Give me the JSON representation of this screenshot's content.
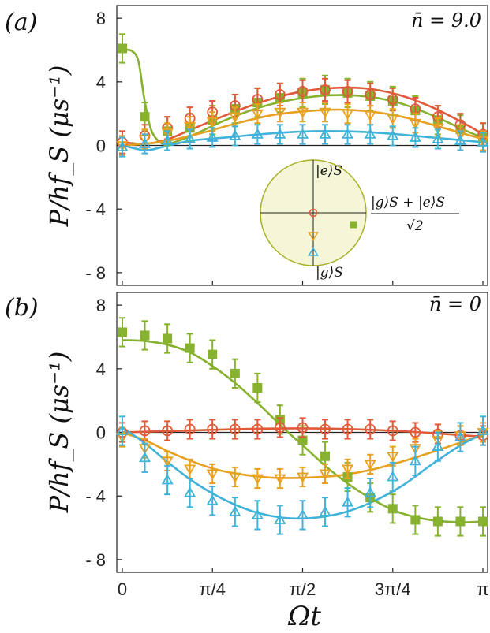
{
  "chart_data": [
    {
      "type": "scatter",
      "panel_label": "(a)",
      "annotation": "n̄ = 9.0",
      "ylabel": "P/hf_S (μs⁻¹)",
      "xlim": [
        0,
        3.1416
      ],
      "ylim": [
        -8.8,
        8.8
      ],
      "yticks": [
        8,
        4,
        0,
        -4,
        -8
      ],
      "ytick_labels": [
        "8",
        "4",
        "0",
        "- 4",
        "- 8"
      ],
      "x": [
        0,
        0.196,
        0.393,
        0.589,
        0.785,
        0.982,
        1.178,
        1.374,
        1.571,
        1.767,
        1.963,
        2.16,
        2.356,
        2.553,
        2.749,
        2.945,
        3.142
      ],
      "series": [
        {
          "name": "|g⟩S+|e⟩S over √2",
          "color": "#86b22f",
          "marker": "square",
          "values": [
            6.1,
            1.8,
            0.9,
            1.1,
            1.6,
            2.3,
            2.7,
            3.0,
            3.3,
            3.5,
            3.3,
            3.1,
            2.8,
            2.2,
            1.6,
            1.0,
            0.5
          ],
          "err": 0.9,
          "fit": [
            [
              0,
              6.0
            ],
            [
              0.08,
              5.95
            ],
            [
              0.14,
              5.3
            ],
            [
              0.19,
              3.0
            ],
            [
              0.25,
              1.0
            ],
            [
              0.33,
              0.2
            ],
            [
              0.4,
              0.1
            ],
            [
              0.6,
              0.6
            ],
            [
              0.9,
              1.6
            ],
            [
              1.2,
              2.4
            ],
            [
              1.5,
              2.9
            ],
            [
              1.8,
              3.15
            ],
            [
              2.1,
              3.1
            ],
            [
              2.4,
              2.7
            ],
            [
              2.7,
              1.9
            ],
            [
              3.0,
              0.9
            ],
            [
              3.14,
              0.5
            ]
          ]
        },
        {
          "name": "red circle",
          "color": "#e05a3a",
          "marker": "circle",
          "values": [
            0.2,
            0.6,
            1.1,
            1.7,
            2.1,
            2.5,
            2.9,
            3.2,
            3.4,
            3.5,
            3.4,
            3.2,
            2.9,
            2.3,
            1.8,
            1.3,
            0.7
          ],
          "err": 0.7,
          "fit": [
            [
              0,
              0.2
            ],
            [
              0.2,
              0.1
            ],
            [
              0.4,
              0.4
            ],
            [
              0.6,
              1.0
            ],
            [
              0.9,
              1.9
            ],
            [
              1.2,
              2.7
            ],
            [
              1.5,
              3.3
            ],
            [
              1.8,
              3.6
            ],
            [
              2.1,
              3.6
            ],
            [
              2.4,
              3.2
            ],
            [
              2.7,
              2.4
            ],
            [
              3.0,
              1.3
            ],
            [
              3.14,
              0.7
            ]
          ]
        },
        {
          "name": "orange triangle down",
          "color": "#e8a020",
          "marker": "triangle-down",
          "values": [
            0.0,
            0.4,
            0.8,
            1.2,
            1.5,
            1.8,
            2.0,
            2.1,
            2.1,
            2.1,
            2.0,
            1.9,
            1.7,
            1.4,
            1.1,
            0.7,
            0.3
          ],
          "err": 0.6,
          "fit": [
            [
              0,
              0.0
            ],
            [
              0.2,
              0.1
            ],
            [
              0.4,
              0.3
            ],
            [
              0.7,
              0.8
            ],
            [
              1.0,
              1.4
            ],
            [
              1.3,
              1.9
            ],
            [
              1.6,
              2.15
            ],
            [
              1.9,
              2.25
            ],
            [
              2.2,
              2.1
            ],
            [
              2.5,
              1.7
            ],
            [
              2.8,
              1.1
            ],
            [
              3.14,
              0.4
            ]
          ]
        },
        {
          "name": "blue triangle up",
          "color": "#41b3d9",
          "marker": "triangle-up",
          "values": [
            -0.1,
            0.1,
            0.3,
            0.4,
            0.5,
            0.6,
            0.7,
            0.7,
            0.7,
            0.7,
            0.7,
            0.7,
            0.6,
            0.5,
            0.4,
            0.3,
            0.2
          ],
          "err": 0.6,
          "fit": [
            [
              0,
              0.0
            ],
            [
              0.2,
              -0.3
            ],
            [
              0.35,
              -0.1
            ],
            [
              0.6,
              0.3
            ],
            [
              0.9,
              0.5
            ],
            [
              1.2,
              0.7
            ],
            [
              1.5,
              0.85
            ],
            [
              1.8,
              0.9
            ],
            [
              2.1,
              0.85
            ],
            [
              2.4,
              0.7
            ],
            [
              2.7,
              0.5
            ],
            [
              3.0,
              0.3
            ],
            [
              3.14,
              0.2
            ]
          ]
        }
      ],
      "inset": {
        "label_top": "|e⟩S",
        "label_bottom": "|g⟩S",
        "label_right_num": "|g⟩S + |e⟩S",
        "label_right_den": "√2"
      }
    },
    {
      "type": "scatter",
      "panel_label": "(b)",
      "annotation": "n̄ = 0",
      "ylabel": "P/hf_S (μs⁻¹)",
      "xlabel": "Ωt",
      "xlim": [
        0,
        3.1416
      ],
      "ylim": [
        -8.8,
        8.8
      ],
      "yticks": [
        8,
        4,
        0,
        -4,
        -8
      ],
      "ytick_labels": [
        "8",
        "4",
        "0",
        "- 4",
        "- 8"
      ],
      "xticks": [
        0,
        0.7854,
        1.5708,
        2.3562,
        3.1416
      ],
      "xtick_labels": [
        "0",
        "π/4",
        "π/2",
        "3π/4",
        "π"
      ],
      "x": [
        0,
        0.196,
        0.393,
        0.589,
        0.785,
        0.982,
        1.178,
        1.374,
        1.571,
        1.767,
        1.963,
        2.16,
        2.356,
        2.553,
        2.749,
        2.945,
        3.142
      ],
      "series": [
        {
          "name": "green square",
          "color": "#86b22f",
          "marker": "square",
          "values": [
            6.3,
            6.1,
            5.9,
            5.3,
            4.9,
            3.7,
            2.8,
            0.8,
            -0.5,
            -1.5,
            -2.8,
            -4.1,
            -4.8,
            -5.5,
            -5.6,
            -5.6,
            -5.6
          ],
          "err": 0.9,
          "fit": [
            [
              0,
              5.8
            ],
            [
              0.2,
              5.75
            ],
            [
              0.4,
              5.5
            ],
            [
              0.6,
              5.0
            ],
            [
              0.8,
              4.1
            ],
            [
              1.0,
              3.0
            ],
            [
              1.2,
              1.7
            ],
            [
              1.4,
              0.3
            ],
            [
              1.6,
              -1.0
            ],
            [
              1.8,
              -2.3
            ],
            [
              2.0,
              -3.4
            ],
            [
              2.2,
              -4.3
            ],
            [
              2.4,
              -5.0
            ],
            [
              2.6,
              -5.4
            ],
            [
              2.8,
              -5.6
            ],
            [
              3.0,
              -5.65
            ],
            [
              3.14,
              -5.6
            ]
          ]
        },
        {
          "name": "red circle",
          "color": "#e05a3a",
          "marker": "circle",
          "values": [
            0.0,
            0.1,
            0.1,
            0.2,
            0.2,
            0.2,
            0.2,
            0.3,
            0.3,
            0.2,
            0.2,
            0.2,
            0.1,
            0.0,
            -0.1,
            -0.2,
            -0.2
          ],
          "err": 0.6,
          "fit": [
            [
              0,
              0.0
            ],
            [
              0.5,
              0.1
            ],
            [
              1.0,
              0.2
            ],
            [
              1.5,
              0.25
            ],
            [
              2.0,
              0.2
            ],
            [
              2.5,
              0.05
            ],
            [
              3.0,
              -0.2
            ],
            [
              3.14,
              -0.25
            ]
          ]
        },
        {
          "name": "orange triangle down",
          "color": "#e8a020",
          "marker": "triangle-down",
          "values": [
            -0.3,
            -1.0,
            -1.8,
            -2.3,
            -2.6,
            -2.8,
            -2.9,
            -2.9,
            -2.8,
            -2.6,
            -2.3,
            -2.0,
            -1.5,
            -1.0,
            -0.5,
            -0.2,
            0.0
          ],
          "err": 0.6,
          "fit": [
            [
              0,
              0.0
            ],
            [
              0.2,
              -0.5
            ],
            [
              0.4,
              -1.2
            ],
            [
              0.6,
              -1.8
            ],
            [
              0.8,
              -2.3
            ],
            [
              1.0,
              -2.6
            ],
            [
              1.3,
              -2.85
            ],
            [
              1.6,
              -2.85
            ],
            [
              1.9,
              -2.7
            ],
            [
              2.2,
              -2.3
            ],
            [
              2.5,
              -1.7
            ],
            [
              2.8,
              -1.0
            ],
            [
              3.0,
              -0.5
            ],
            [
              3.14,
              -0.2
            ]
          ]
        },
        {
          "name": "blue triangle up",
          "color": "#41b3d9",
          "marker": "triangle-up",
          "values": [
            0.1,
            -1.6,
            -3.0,
            -3.8,
            -4.3,
            -5.0,
            -5.2,
            -5.5,
            -5.2,
            -5.0,
            -4.4,
            -3.8,
            -2.8,
            -1.8,
            -0.9,
            -0.3,
            0.1
          ],
          "err": 0.9,
          "fit": [
            [
              0,
              0.3
            ],
            [
              0.2,
              -0.7
            ],
            [
              0.4,
              -1.9
            ],
            [
              0.6,
              -3.0
            ],
            [
              0.8,
              -3.9
            ],
            [
              1.0,
              -4.6
            ],
            [
              1.2,
              -5.1
            ],
            [
              1.45,
              -5.4
            ],
            [
              1.7,
              -5.35
            ],
            [
              1.95,
              -5.0
            ],
            [
              2.2,
              -4.3
            ],
            [
              2.45,
              -3.3
            ],
            [
              2.7,
              -2.0
            ],
            [
              2.95,
              -0.8
            ],
            [
              3.14,
              -0.1
            ]
          ]
        }
      ]
    }
  ]
}
